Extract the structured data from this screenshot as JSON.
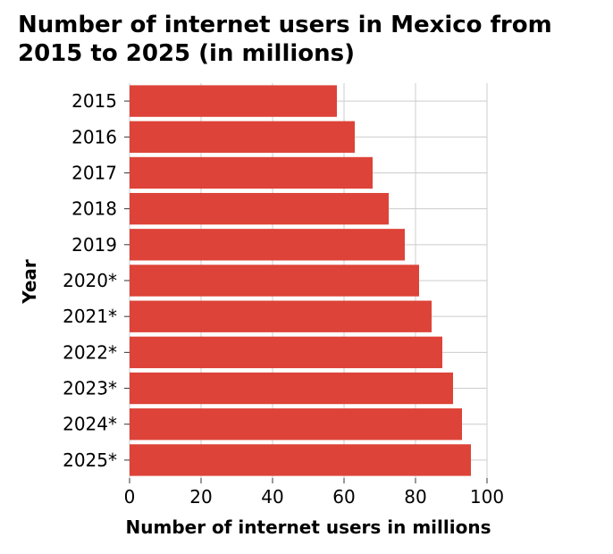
{
  "chart_data": {
    "type": "bar",
    "orientation": "horizontal",
    "title_lines": [
      "Number of internet users in Mexico from",
      "2015 to 2025 (in millions)"
    ],
    "xlabel": "Number of internet users in millions",
    "ylabel": "Year",
    "categories": [
      "2015",
      "2016",
      "2017",
      "2018",
      "2019",
      "2020*",
      "2021*",
      "2022*",
      "2023*",
      "2024*",
      "2025*"
    ],
    "values": [
      58,
      63,
      68,
      72.5,
      77,
      81,
      84.5,
      87.5,
      90.5,
      93,
      95.5
    ],
    "xlim": [
      0,
      100
    ],
    "xticks": [
      0,
      20,
      40,
      60,
      80,
      100
    ],
    "grid": true,
    "legend": "none",
    "bar_color": "#dd4338",
    "grid_color": "#cccccc"
  }
}
